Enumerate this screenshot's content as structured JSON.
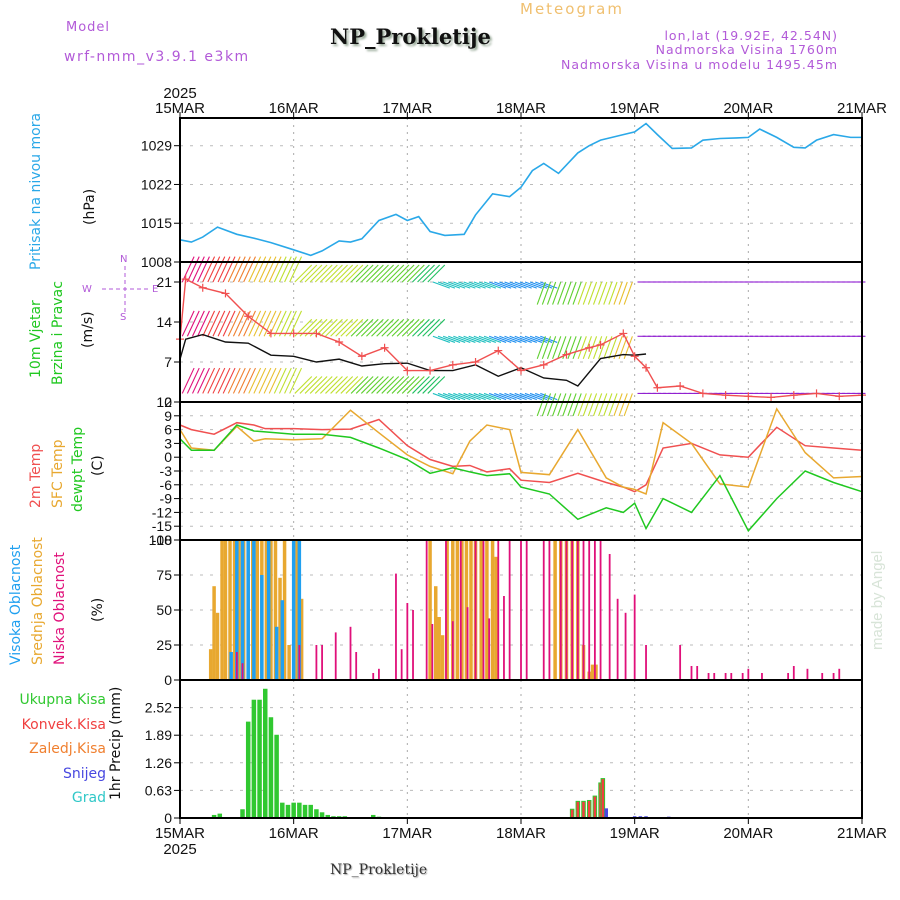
{
  "header": {
    "model_label": "Model",
    "model_version": "wrf-nmm_v3.9.1 e3km",
    "title": "NP_Prokletije",
    "subtitle": "Meteogram",
    "lonlat": "lon,lat (19.92E, 42.54N)",
    "elevation": "Nadmorska Visina 1760m",
    "model_elevation": "Nadmorska Visina u modelu 1495.45m"
  },
  "footer": {
    "station": "NP_Prokletije",
    "watermark": "made by Angel"
  },
  "colors": {
    "pressure": "#2aa8e8",
    "temp2m": "#f05050",
    "sfc_temp": "#e8a830",
    "dewpoint": "#20c820",
    "high_cloud": "#20a0f0",
    "mid_cloud": "#e8a830",
    "low_cloud": "#e0107a",
    "total_rain": "#30c830",
    "conv_rain": "#f04040",
    "frz_rain": "#f08030",
    "snow": "#4848e0",
    "hail": "#30c8c8",
    "label_purple": "#b25ad8"
  },
  "xaxis": {
    "year": "2025",
    "ticks": [
      "15MAR",
      "16MAR",
      "17MAR",
      "18MAR",
      "19MAR",
      "20MAR",
      "21MAR"
    ]
  },
  "panels": {
    "pressure": {
      "label": "Pritisak na nivou mora",
      "unit": "(hPa)"
    },
    "wind": {
      "label1": "10m Vjetar",
      "label2": "Brzina i Pravac",
      "unit": "(m/s)",
      "compass": {
        "n": "N",
        "s": "S",
        "e": "E",
        "w": "W"
      }
    },
    "temp": {
      "label_2m": "2m Temp",
      "label_sfc": "SFC Temp",
      "label_dew": "dewpt Temp",
      "unit": "(C)"
    },
    "cloud": {
      "label_high": "Visoka Oblacnost",
      "label_mid": "Srednja Oblacnost",
      "label_low": "Niska Oblacnost",
      "unit": "(%)"
    },
    "precip": {
      "legend": [
        "Ukupna Kisa",
        "Konvek.Kisa",
        "Zaledj.Kisa",
        "Snijeg",
        "Grad"
      ],
      "unit": "1hr Precip (mm)"
    }
  },
  "chart_data": [
    {
      "type": "line",
      "title": "Pritisak na nivou mora",
      "ylabel": "(hPa)",
      "ylim": [
        1008,
        1034
      ],
      "yticks": [
        1008,
        1015,
        1022,
        1029
      ],
      "x_days": [
        0,
        0.1,
        0.2,
        0.33,
        0.5,
        0.67,
        0.8,
        1.0,
        1.15,
        1.25,
        1.4,
        1.5,
        1.6,
        1.75,
        1.9,
        2.0,
        2.1,
        2.2,
        2.33,
        2.5,
        2.6,
        2.75,
        2.9,
        3.0,
        3.1,
        3.2,
        3.33,
        3.5,
        3.6,
        3.7,
        3.8,
        3.9,
        4.0,
        4.1,
        4.2,
        4.33,
        4.5,
        4.6,
        4.75,
        4.9,
        5.0,
        5.1,
        5.25,
        5.4,
        5.5,
        5.6,
        5.75,
        5.9,
        6.0
      ],
      "values": [
        1012,
        1011.6,
        1012.5,
        1014.3,
        1013,
        1012.2,
        1011.5,
        1010.2,
        1009.2,
        1010,
        1011.8,
        1011.6,
        1012.2,
        1015.5,
        1016.6,
        1015.5,
        1016.2,
        1013.5,
        1012.8,
        1013,
        1016.5,
        1020.3,
        1019.8,
        1021.5,
        1024.5,
        1025.8,
        1024,
        1027.7,
        1029,
        1030,
        1030.5,
        1031,
        1031.5,
        1033,
        1031,
        1028.5,
        1028.6,
        1030,
        1030.3,
        1030.4,
        1030.5,
        1032,
        1030.5,
        1028.7,
        1028.6,
        1030,
        1031,
        1030.5,
        1030.5
      ]
    },
    {
      "type": "line",
      "title": "10m Vjetar Brzina i Pravac",
      "ylabel": "(m/s)",
      "ylim": [
        0,
        24.5
      ],
      "yticks": [
        0,
        7,
        14,
        21
      ],
      "series": [
        {
          "name": "wind_speed",
          "color": "#111111",
          "x_days": [
            0,
            0.05,
            0.2,
            0.4,
            0.6,
            0.8,
            1.0,
            1.2,
            1.4,
            1.6,
            1.8,
            2.0,
            2.2,
            2.4,
            2.6,
            2.8,
            3.0,
            3.2,
            3.4,
            3.5,
            3.7,
            3.9,
            4.0,
            4.1
          ],
          "values": [
            7.5,
            11,
            11.8,
            10.5,
            10.3,
            8.2,
            8,
            7,
            7.5,
            6.3,
            6.7,
            6.8,
            5.5,
            5.5,
            6.5,
            4.5,
            6,
            4.2,
            3.8,
            2.8,
            7.6,
            8.3,
            8.2,
            8.4
          ]
        },
        {
          "name": "wind_gust",
          "color": "#f05050",
          "x_days": [
            0,
            0.05,
            0.2,
            0.4,
            0.6,
            0.8,
            1.0,
            1.2,
            1.4,
            1.6,
            1.8,
            2.0,
            2.2,
            2.4,
            2.6,
            2.8,
            3.0,
            3.2,
            3.4,
            3.6,
            3.7,
            3.9,
            4.0,
            4.1,
            4.2,
            4.4,
            4.6,
            4.8,
            5.0,
            5.2,
            5.4,
            5.6,
            5.8,
            6.0
          ],
          "values": [
            11,
            21.5,
            20,
            19,
            15,
            12,
            12,
            12,
            10.5,
            8,
            9.5,
            5.5,
            5.5,
            6.5,
            7,
            9,
            5.5,
            6.5,
            8.3,
            9.5,
            10,
            12,
            8,
            6,
            2.5,
            2.8,
            1.5,
            1.2,
            1,
            0.8,
            1.2,
            1.5,
            1.0,
            1.2
          ]
        }
      ]
    },
    {
      "type": "line",
      "title": "2m Temp / SFC Temp / dewpt Temp",
      "ylabel": "(C)",
      "ylim": [
        -18,
        12
      ],
      "yticks": [
        -18,
        -15,
        -12,
        -9,
        -6,
        -3,
        0,
        3,
        6,
        9,
        12
      ],
      "series": [
        {
          "name": "2m Temp",
          "color": "#f05050",
          "x_days": [
            0,
            0.1,
            0.3,
            0.5,
            0.65,
            0.75,
            1.0,
            1.25,
            1.5,
            1.75,
            2.0,
            2.2,
            2.4,
            2.55,
            2.7,
            2.9,
            3.0,
            3.25,
            3.5,
            3.75,
            3.9,
            4.0,
            4.1,
            4.25,
            4.5,
            4.75,
            5.0,
            5.25,
            5.5,
            5.75,
            6.0
          ],
          "values": [
            7,
            6,
            5,
            7.5,
            7,
            6.2,
            6.2,
            6,
            6.1,
            8.2,
            2.5,
            -0.5,
            -2,
            -1.8,
            -3.2,
            -2.5,
            -5,
            -5.5,
            -3.5,
            -5.5,
            -6.5,
            -7.5,
            -6,
            2,
            3,
            0.5,
            0,
            6.5,
            2.5,
            2,
            1.5
          ]
        },
        {
          "name": "SFC Temp",
          "color": "#e8a830",
          "x_days": [
            0,
            0.1,
            0.3,
            0.5,
            0.65,
            0.75,
            1.0,
            1.25,
            1.5,
            1.75,
            2.0,
            2.2,
            2.4,
            2.55,
            2.7,
            2.9,
            3.0,
            3.25,
            3.5,
            3.75,
            3.9,
            4.0,
            4.1,
            4.25,
            4.5,
            4.75,
            5.0,
            5.25,
            5.5,
            5.75,
            6.0
          ],
          "values": [
            6,
            2,
            1.5,
            6.7,
            3.5,
            4,
            3.8,
            4,
            10.2,
            5.3,
            0.5,
            -2,
            -3.6,
            3.5,
            7,
            6,
            -3.3,
            -3.8,
            6,
            -4.5,
            -6.5,
            -7,
            -8,
            7.5,
            3,
            -5.8,
            -6.5,
            10.5,
            1,
            -4.5,
            -4.2
          ]
        },
        {
          "name": "dewpt Temp",
          "color": "#20c820",
          "x_days": [
            0,
            0.1,
            0.3,
            0.5,
            0.65,
            0.75,
            1.0,
            1.25,
            1.5,
            1.75,
            2.0,
            2.2,
            2.4,
            2.55,
            2.7,
            2.9,
            3.0,
            3.25,
            3.5,
            3.75,
            3.9,
            4.0,
            4.1,
            4.25,
            4.5,
            4.75,
            5.0,
            5.25,
            5.5,
            5.75,
            6.0
          ],
          "values": [
            4,
            1.5,
            1.5,
            7,
            5.7,
            5.5,
            5,
            5,
            4.3,
            2,
            -0.5,
            -3.5,
            -2.3,
            -3.2,
            -4,
            -3.6,
            -6.5,
            -8,
            -13.5,
            -11,
            -12,
            -10,
            -15.5,
            -9,
            -12,
            -4,
            -16,
            -9,
            -3,
            -5.5,
            -7.5
          ]
        }
      ]
    },
    {
      "type": "bar",
      "title": "Visoka / Srednja / Niska Oblacnost",
      "ylabel": "(%)",
      "ylim": [
        0,
        100
      ],
      "yticks": [
        0,
        25,
        50,
        75,
        100
      ],
      "series": [
        {
          "name": "Visoka Oblacnost",
          "color": "#20a0f0",
          "x_days": [
            0.45,
            0.5,
            0.55,
            0.6,
            0.65,
            0.72,
            0.78,
            0.85,
            0.9,
            1.0,
            1.05
          ],
          "values": [
            20,
            100,
            100,
            100,
            100,
            75,
            100,
            38,
            57,
            100,
            100
          ]
        },
        {
          "name": "Srednja Oblacnost",
          "color": "#e8a830",
          "x_days": [
            0.27,
            0.3,
            0.33,
            0.37,
            0.4,
            0.44,
            0.48,
            0.52,
            0.56,
            0.6,
            0.64,
            0.68,
            0.72,
            0.76,
            0.8,
            0.84,
            0.88,
            0.92,
            0.96,
            1.03,
            1.07,
            2.2,
            2.25,
            2.28,
            2.31,
            2.35,
            2.4,
            2.44,
            2.48,
            2.52,
            2.56,
            2.6,
            2.65,
            2.7,
            2.75,
            2.78,
            3.3,
            3.35,
            3.4,
            3.45,
            3.5,
            3.55,
            3.6,
            3.63,
            3.66
          ],
          "values": [
            22,
            67,
            48,
            100,
            100,
            100,
            100,
            100,
            100,
            100,
            100,
            100,
            100,
            100,
            100,
            100,
            73,
            100,
            25,
            100,
            58,
            100,
            67,
            45,
            32,
            100,
            100,
            100,
            100,
            100,
            100,
            100,
            100,
            100,
            100,
            88,
            100,
            100,
            100,
            100,
            100,
            25,
            6,
            11,
            11
          ]
        },
        {
          "name": "Niska Oblacnost",
          "color": "#e0107a",
          "x_days": [
            0.5,
            0.55,
            1.05,
            1.2,
            1.25,
            1.37,
            1.5,
            1.55,
            1.7,
            1.75,
            1.9,
            1.95,
            2.0,
            2.05,
            2.17,
            2.22,
            2.34,
            2.4,
            2.47,
            2.53,
            2.6,
            2.67,
            2.72,
            2.8,
            2.85,
            2.9,
            3.0,
            3.05,
            3.2,
            3.25,
            3.35,
            3.4,
            3.45,
            3.5,
            3.55,
            3.6,
            3.65,
            3.7,
            3.78,
            3.85,
            3.92,
            4.0,
            4.1,
            4.4,
            4.5,
            4.55,
            4.65,
            4.7,
            4.8,
            4.85,
            4.95,
            5.0,
            5.12,
            5.35,
            5.4,
            5.52,
            5.65,
            5.75,
            5.8
          ],
          "values": [
            20,
            12,
            25,
            25,
            25,
            34,
            38,
            20,
            5,
            8,
            76,
            22,
            55,
            50,
            100,
            40,
            100,
            42,
            100,
            52,
            100,
            100,
            44,
            100,
            60,
            100,
            100,
            100,
            100,
            100,
            100,
            100,
            100,
            100,
            100,
            100,
            100,
            100,
            90,
            58,
            48,
            61,
            25,
            25,
            10,
            10,
            5,
            5,
            5,
            5,
            5,
            8,
            5,
            5,
            10,
            8,
            5,
            5,
            8
          ]
        }
      ]
    },
    {
      "type": "bar",
      "title": "1hr Precip",
      "ylabel": "1hr Precip (mm)",
      "ylim": [
        0,
        3.15
      ],
      "yticks": [
        0,
        0.63,
        1.26,
        1.89,
        2.52
      ],
      "series": [
        {
          "name": "Ukupna Kisa",
          "color": "#30c830",
          "x_days": [
            0.3,
            0.35,
            0.55,
            0.6,
            0.65,
            0.7,
            0.75,
            0.8,
            0.85,
            0.9,
            0.95,
            1.0,
            1.05,
            1.1,
            1.15,
            1.2,
            1.25,
            1.3,
            1.35,
            1.4,
            1.45,
            1.5,
            1.55,
            1.7,
            1.75
          ],
          "values": [
            0.07,
            0.1,
            0.2,
            2.2,
            2.7,
            2.7,
            2.95,
            2.3,
            1.9,
            0.35,
            0.3,
            0.35,
            0.35,
            0.3,
            0.3,
            0.2,
            0.13,
            0.07,
            0.04,
            0.04,
            0.04,
            0.02,
            0.02,
            0.07,
            0.03
          ]
        },
        {
          "name": "Konvek.Kisa",
          "color": "#f04040",
          "x_days": [
            3.45,
            3.5,
            3.55,
            3.6,
            3.65,
            3.7,
            3.72
          ],
          "values": [
            0.2,
            0.38,
            0.38,
            0.4,
            0.5,
            0.8,
            0.9
          ]
        },
        {
          "name": "Snijeg",
          "color": "#4848e0",
          "x_days": [
            3.75,
            4.0,
            4.05,
            4.1,
            4.3
          ],
          "values": [
            0.22,
            0.04,
            0.04,
            0.04,
            0.03
          ]
        }
      ]
    }
  ]
}
